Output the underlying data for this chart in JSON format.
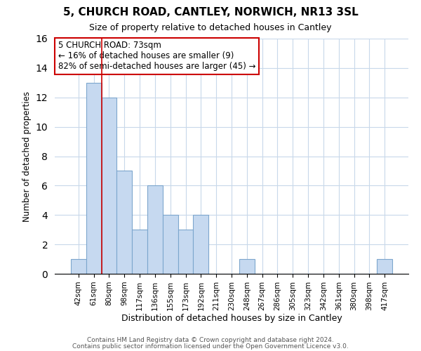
{
  "title": "5, CHURCH ROAD, CANTLEY, NORWICH, NR13 3SL",
  "subtitle": "Size of property relative to detached houses in Cantley",
  "xlabel": "Distribution of detached houses by size in Cantley",
  "ylabel": "Number of detached properties",
  "bar_labels": [
    "42sqm",
    "61sqm",
    "80sqm",
    "98sqm",
    "117sqm",
    "136sqm",
    "155sqm",
    "173sqm",
    "192sqm",
    "211sqm",
    "230sqm",
    "248sqm",
    "267sqm",
    "286sqm",
    "305sqm",
    "323sqm",
    "342sqm",
    "361sqm",
    "380sqm",
    "398sqm",
    "417sqm"
  ],
  "bar_values": [
    1,
    13,
    12,
    7,
    3,
    6,
    4,
    3,
    4,
    0,
    0,
    1,
    0,
    0,
    0,
    0,
    0,
    0,
    0,
    0,
    1
  ],
  "bar_color": "#c6d9f0",
  "bar_edge_color": "#7da6cd",
  "annotation_box_text": "5 CHURCH ROAD: 73sqm\n← 16% of detached houses are smaller (9)\n82% of semi-detached houses are larger (45) →",
  "annotation_box_facecolor": "#ffffff",
  "annotation_box_edgecolor": "#cc0000",
  "vline_color": "#cc0000",
  "vline_x_index": 1.5,
  "ylim": [
    0,
    16
  ],
  "yticks": [
    0,
    2,
    4,
    6,
    8,
    10,
    12,
    14,
    16
  ],
  "footer_line1": "Contains HM Land Registry data © Crown copyright and database right 2024.",
  "footer_line2": "Contains public sector information licensed under the Open Government Licence v3.0.",
  "background_color": "#ffffff",
  "grid_color": "#c8d8ea"
}
